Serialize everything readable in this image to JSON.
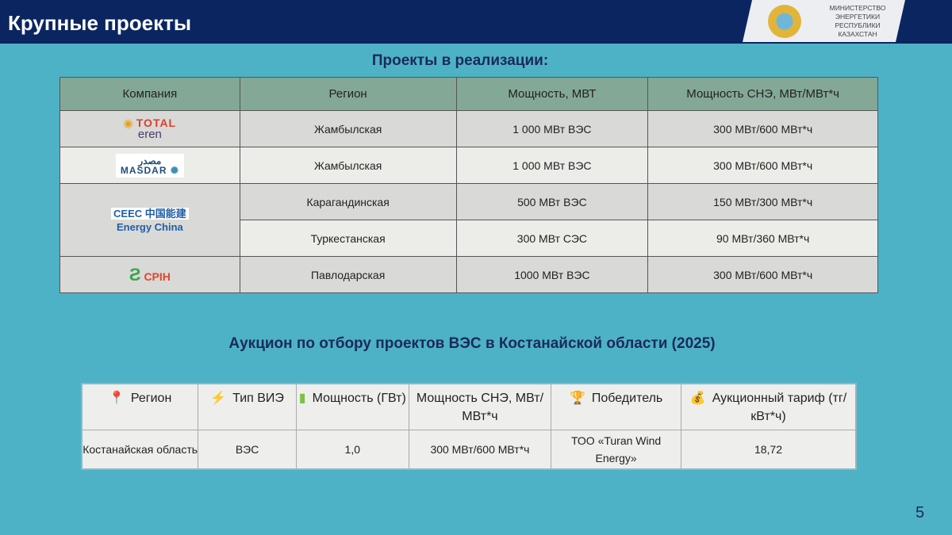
{
  "header": {
    "title": "Крупные проекты",
    "ministry": "МИНИСТЕРСТВО ЭНЕРГЕТИКИ РЕСПУБЛИКИ КАЗАХСТАН"
  },
  "section1": {
    "title": "Проекты в реализации:",
    "columns": [
      "Компания",
      "Регион",
      "Мощность, МВТ",
      "Мощность СНЭ, МВт/МВт*ч"
    ],
    "companies": [
      {
        "logo_top": "TOTAL",
        "logo_bottom": "eren"
      },
      {
        "logo_top": "مصدر",
        "logo_bottom": "MASDAR"
      },
      {
        "logo_top": "CEEC 中国能建",
        "logo_bottom": "Energy China"
      },
      {
        "logo_top": "",
        "logo_bottom": "CPIH"
      }
    ],
    "rows": [
      [
        "Жамбылская",
        "1 000 МВт ВЭС",
        "300 МВт/600 МВт*ч"
      ],
      [
        "Жамбылская",
        "1 000 МВт ВЭС",
        "300 МВт/600 МВт*ч"
      ],
      [
        "Карагандинская",
        "500 МВт ВЭС",
        "150 МВт/300 МВт*ч"
      ],
      [
        "Туркестанская",
        "300 МВт СЭС",
        "90 МВт/360 МВт*ч"
      ],
      [
        "Павлодарская",
        "1000 МВт ВЭС",
        "300 МВт/600 МВт*ч"
      ]
    ]
  },
  "section2": {
    "title": "Аукцион по отбору проектов ВЭС в Костанайской области (2025)",
    "columns": [
      {
        "icon": "pin-icon",
        "label": "Регион"
      },
      {
        "icon": "lightning-icon",
        "label": "Тип ВИЭ"
      },
      {
        "icon": "battery-icon",
        "label": "Мощность (ГВт)"
      },
      {
        "icon": "",
        "label": "Мощность СНЭ, МВт/МВт*ч"
      },
      {
        "icon": "trophy-icon",
        "label": "Победитель"
      },
      {
        "icon": "money-bag-icon",
        "label": "Аукционный тариф (тг/кВт*ч)"
      }
    ],
    "row": [
      "Костанайская область",
      "ВЭС",
      "1,0",
      "300 МВт/600 МВт*ч",
      "ТОО «Turan Wind Energy»",
      "18,72"
    ]
  },
  "page_number": "5"
}
